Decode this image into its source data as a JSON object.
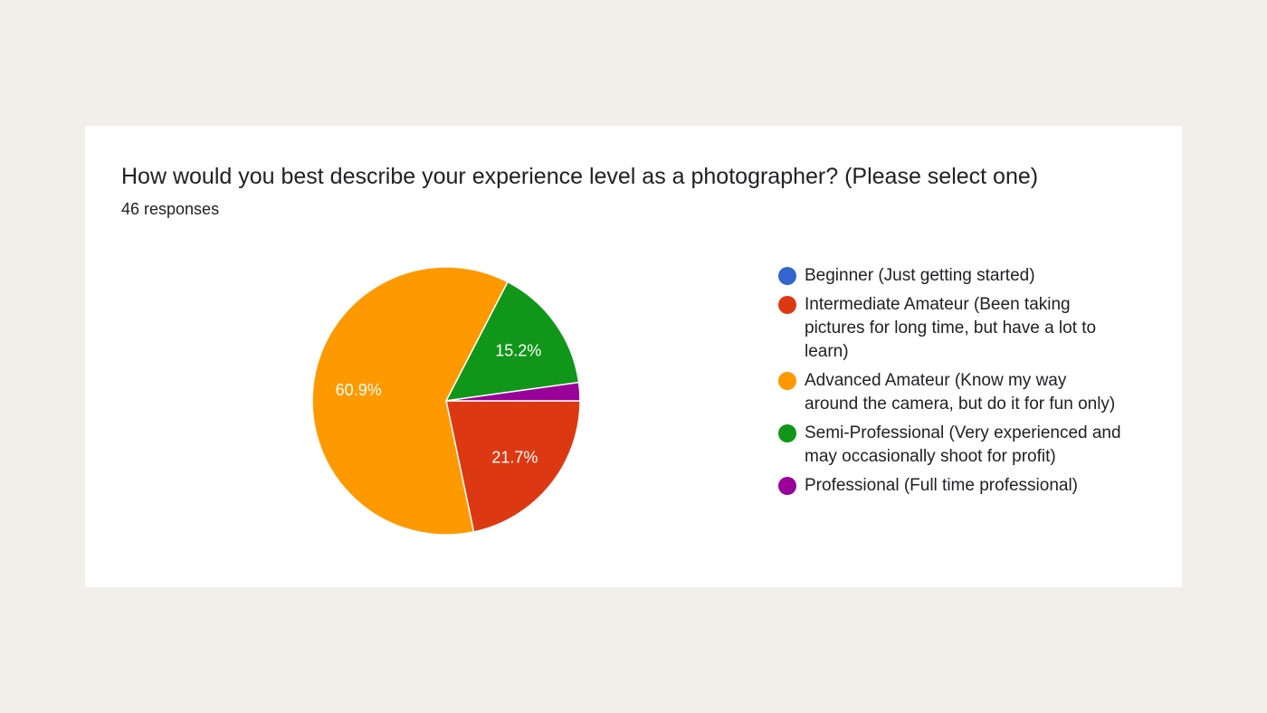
{
  "chart_data": {
    "type": "pie",
    "title": "How would you best describe your experience level as a photographer? (Please select one)",
    "subtitle": "46 responses",
    "legend_position": "right",
    "series": [
      {
        "name": "Beginner (Just getting started)",
        "value": 0,
        "color": "#3366cc",
        "label": ""
      },
      {
        "name": "Intermediate Amateur (Been taking pictures for long time, but have a lot to learn)",
        "value": 21.7,
        "color": "#dc3912",
        "label": "21.7%"
      },
      {
        "name": "Advanced Amateur (Know my way around the camera, but do it for fun only)",
        "value": 60.9,
        "color": "#ff9900",
        "label": "60.9%"
      },
      {
        "name": "Semi-Professional (Very experienced and may occasionally shoot for profit)",
        "value": 15.2,
        "color": "#109618",
        "label": "15.2%"
      },
      {
        "name": "Professional (Full time professional)",
        "value": 2.2,
        "color": "#990099",
        "label": ""
      }
    ]
  }
}
